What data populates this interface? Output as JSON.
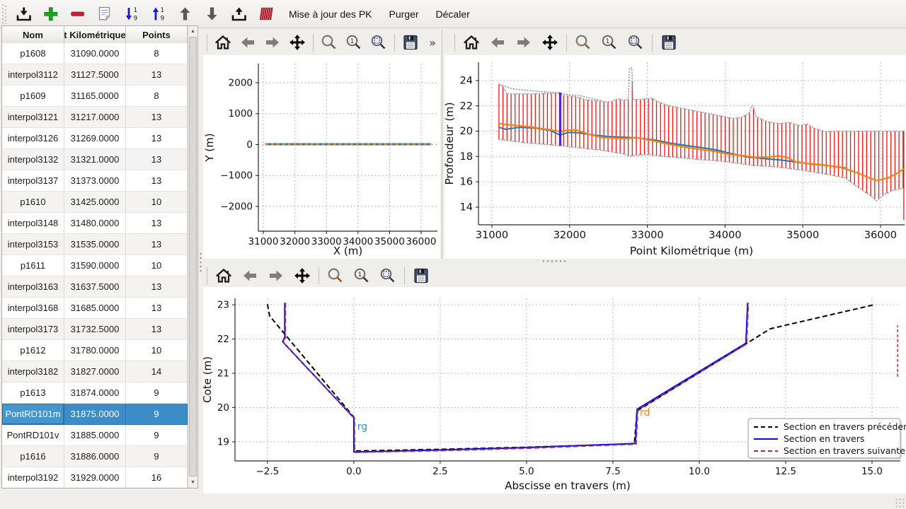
{
  "app": {
    "background": "#efeeeb"
  },
  "toolbar": {
    "icons": [
      "import-icon",
      "add-icon",
      "remove-icon",
      "notes-icon",
      "sort-descending-icon",
      "sort-ascending-icon",
      "move-up-icon",
      "move-down-icon",
      "export-icon",
      "sections-icon"
    ],
    "text_buttons": [
      "Mise à jour des PK",
      "Purger",
      "Décaler"
    ]
  },
  "table": {
    "columns": [
      {
        "label": "Nom",
        "width": 88
      },
      {
        "label": "t Kilométrique",
        "width": 87
      },
      {
        "label": "Points",
        "width": 87
      }
    ],
    "rows": [
      [
        "p1608",
        "31090.0000",
        "8"
      ],
      [
        "interpol3112",
        "31127.5000",
        "13"
      ],
      [
        "p1609",
        "31165.0000",
        "8"
      ],
      [
        "interpol3121",
        "31217.0000",
        "13"
      ],
      [
        "interpol3126",
        "31269.0000",
        "13"
      ],
      [
        "interpol3132",
        "31321.0000",
        "13"
      ],
      [
        "interpol3137",
        "31373.0000",
        "13"
      ],
      [
        "p1610",
        "31425.0000",
        "10"
      ],
      [
        "interpol3148",
        "31480.0000",
        "13"
      ],
      [
        "interpol3153",
        "31535.0000",
        "13"
      ],
      [
        "p1611",
        "31590.0000",
        "10"
      ],
      [
        "interpol3163",
        "31637.5000",
        "13"
      ],
      [
        "interpol3168",
        "31685.0000",
        "13"
      ],
      [
        "interpol3173",
        "31732.5000",
        "13"
      ],
      [
        "p1612",
        "31780.0000",
        "10"
      ],
      [
        "interpol3182",
        "31827.0000",
        "14"
      ],
      [
        "p1613",
        "31874.0000",
        "9"
      ],
      [
        "PontRD101m",
        "31875.0000",
        "9"
      ],
      [
        "PontRD101v",
        "31885.0000",
        "9"
      ],
      [
        "p1616",
        "31886.0000",
        "9"
      ],
      [
        "interpol3192",
        "31929.0000",
        "16"
      ]
    ],
    "selected_index": 17,
    "selected_color": "#3c8cc7"
  },
  "figures": [
    {
      "id": "trace",
      "nav_icons": [
        "home-icon",
        "back-icon",
        "forward-icon",
        "pan-icon",
        "zoom-icon",
        "zoom-region-icon",
        "zoom-fit-icon",
        "save-icon"
      ],
      "overflow": "»"
    },
    {
      "id": "profil",
      "nav_icons": [
        "home-icon",
        "back-icon",
        "forward-icon",
        "pan-icon",
        "zoom-icon",
        "zoom-region-icon",
        "zoom-fit-icon",
        "save-icon"
      ],
      "overflow": null
    },
    {
      "id": "section",
      "nav_icons": [
        "home-icon",
        "back-icon",
        "forward-icon",
        "pan-icon",
        "zoom-icon",
        "zoom-region-icon",
        "zoom-fit-icon",
        "save-icon"
      ],
      "overflow": null
    }
  ],
  "chart_data": [
    {
      "id": "trace",
      "type": "line",
      "title": "",
      "xlabel": "X (m)",
      "ylabel": "Y (m)",
      "xlim": [
        30843,
        36516
      ],
      "ylim": [
        -2800,
        2617
      ],
      "xticks": [
        31000,
        32000,
        33000,
        34000,
        35000,
        36000
      ],
      "xtick_labels": [
        "31000",
        "32000",
        "33000",
        "34000",
        "35000",
        "36000"
      ],
      "yticks": [
        -2000,
        -1000,
        0,
        1000,
        2000
      ],
      "ytick_labels": [
        "−2000",
        "−1000",
        "0",
        "1000",
        "2000"
      ],
      "grid": true,
      "series": [
        {
          "name": "axe-hydraulique",
          "color": "#1f77b4",
          "width": 3,
          "dash": null,
          "points": [
            [
              31060,
              10
            ],
            [
              36320,
              10
            ]
          ]
        },
        {
          "name": "axe-hydraulique-pk",
          "color": "#ff7f0e",
          "width": 2.6,
          "dash": "4 4",
          "points": [
            [
              31060,
              10
            ],
            [
              36320,
              10
            ]
          ]
        }
      ]
    },
    {
      "id": "profil",
      "type": "line",
      "title": "",
      "xlabel": "Point Kilométrique (m)",
      "ylabel": "Profondeur (m)",
      "xlim": [
        30827,
        36310
      ],
      "ylim": [
        12.6,
        25.45
      ],
      "xticks": [
        31000,
        32000,
        33000,
        34000,
        35000,
        36000
      ],
      "xtick_labels": [
        "31000",
        "32000",
        "33000",
        "34000",
        "35000",
        "36000"
      ],
      "yticks": [
        14,
        16,
        18,
        20,
        22,
        24
      ],
      "ytick_labels": [
        "14",
        "16",
        "18",
        "20",
        "22",
        "24"
      ],
      "grid": true,
      "bars": {
        "color": "#f21414",
        "width": 1.3,
        "start": 31090,
        "end": 36290,
        "spacing": 52,
        "extra_bars": [
          [
            36300,
            13.0,
            20.0
          ]
        ],
        "top_env": [
          [
            31090,
            23.7
          ],
          [
            31140,
            23.55
          ],
          [
            31190,
            22.95
          ],
          [
            31500,
            22.95
          ],
          [
            31790,
            23.0
          ],
          [
            31870,
            23.05
          ],
          [
            31930,
            22.8
          ],
          [
            32060,
            22.75
          ],
          [
            32200,
            22.5
          ],
          [
            32350,
            22.38
          ],
          [
            32520,
            22.3
          ],
          [
            32620,
            22.55
          ],
          [
            32700,
            22.45
          ],
          [
            32755,
            22.5
          ],
          [
            32770,
            25.0
          ],
          [
            32800,
            25.0
          ],
          [
            32815,
            22.5
          ],
          [
            32900,
            22.5
          ],
          [
            32990,
            22.55
          ],
          [
            33060,
            22.6
          ],
          [
            33130,
            22.35
          ],
          [
            33280,
            22.0
          ],
          [
            33450,
            21.8
          ],
          [
            33700,
            21.5
          ],
          [
            33950,
            21.2
          ],
          [
            34100,
            21.0
          ],
          [
            34220,
            21.1
          ],
          [
            34320,
            21.5
          ],
          [
            34340,
            22.0
          ],
          [
            34360,
            22.0
          ],
          [
            34400,
            21.15
          ],
          [
            34540,
            20.75
          ],
          [
            34700,
            20.6
          ],
          [
            34820,
            20.7
          ],
          [
            34950,
            20.45
          ],
          [
            35060,
            20.55
          ],
          [
            35160,
            20.2
          ],
          [
            35300,
            19.95
          ],
          [
            35450,
            20.0
          ],
          [
            36290,
            20.0
          ]
        ],
        "bottom_env": [
          [
            31090,
            19.35
          ],
          [
            31400,
            19.1
          ],
          [
            31700,
            18.95
          ],
          [
            31875,
            18.85
          ],
          [
            32100,
            18.7
          ],
          [
            32400,
            18.5
          ],
          [
            32700,
            18.2
          ],
          [
            32770,
            18.0
          ],
          [
            32850,
            18.1
          ],
          [
            33000,
            18.15
          ],
          [
            33300,
            17.95
          ],
          [
            33600,
            17.8
          ],
          [
            34000,
            17.6
          ],
          [
            34340,
            17.3
          ],
          [
            34700,
            17.15
          ],
          [
            35000,
            16.9
          ],
          [
            35300,
            16.6
          ],
          [
            35550,
            16.3
          ],
          [
            35700,
            15.6
          ],
          [
            35850,
            15.0
          ],
          [
            35950,
            14.5
          ],
          [
            36050,
            15.0
          ],
          [
            36150,
            15.3
          ],
          [
            36290,
            15.5
          ]
        ]
      },
      "envelope_style": {
        "color": "#9a9a9a",
        "width": 1.6,
        "dash": "1 3"
      },
      "outer_env": [
        [
          31100,
          23.68
        ],
        [
          31260,
          23.35
        ],
        [
          31500,
          23.2
        ],
        [
          31750,
          23.08
        ],
        [
          31950,
          22.92
        ],
        [
          32150,
          22.78
        ],
        [
          32330,
          22.52
        ],
        [
          32420,
          22.4
        ]
      ],
      "selected_marker": {
        "pk": 31875,
        "z0": 18.85,
        "z1": 23.05,
        "color": "#2a2ae0",
        "color2": "#7a1fa0"
      },
      "series": [
        {
          "name": "fond-bleu",
          "color": "#1f77b4",
          "width": 2,
          "dash": null,
          "points": [
            [
              31090,
              20.3
            ],
            [
              31180,
              20.15
            ],
            [
              31350,
              20.3
            ],
            [
              31550,
              20.25
            ],
            [
              31750,
              20.05
            ],
            [
              31875,
              19.7
            ],
            [
              31990,
              19.9
            ],
            [
              32100,
              19.88
            ],
            [
              32300,
              19.7
            ],
            [
              32500,
              19.58
            ],
            [
              32700,
              19.52
            ],
            [
              32900,
              19.45
            ],
            [
              33100,
              19.3
            ],
            [
              33300,
              19.05
            ],
            [
              33500,
              18.87
            ],
            [
              33700,
              18.7
            ],
            [
              33900,
              18.5
            ],
            [
              34100,
              18.2
            ],
            [
              34300,
              17.95
            ],
            [
              34500,
              17.83
            ],
            [
              34700,
              17.73
            ],
            [
              34900,
              17.57
            ],
            [
              35100,
              17.4
            ],
            [
              35300,
              17.3
            ],
            [
              35550,
              17.1
            ]
          ]
        },
        {
          "name": "fond-orange",
          "color": "#ff7f0e",
          "width": 2.2,
          "dash": null,
          "points": [
            [
              31090,
              20.6
            ],
            [
              31300,
              20.45
            ],
            [
              31500,
              20.33
            ],
            [
              31700,
              20.15
            ],
            [
              31875,
              19.98
            ],
            [
              31990,
              20.08
            ],
            [
              32080,
              20.1
            ],
            [
              32250,
              19.75
            ],
            [
              32420,
              19.5
            ],
            [
              32600,
              19.45
            ],
            [
              32750,
              19.42
            ],
            [
              32850,
              19.5
            ],
            [
              33050,
              19.28
            ],
            [
              33250,
              19.0
            ],
            [
              33450,
              18.78
            ],
            [
              33650,
              18.6
            ],
            [
              33850,
              18.42
            ],
            [
              34050,
              18.18
            ],
            [
              34250,
              18.05
            ],
            [
              34400,
              17.92
            ],
            [
              34550,
              17.95
            ],
            [
              34700,
              18.05
            ],
            [
              34800,
              17.92
            ],
            [
              34900,
              17.6
            ],
            [
              35050,
              17.45
            ],
            [
              35250,
              17.35
            ],
            [
              35500,
              17.12
            ],
            [
              35700,
              16.72
            ],
            [
              35850,
              16.32
            ],
            [
              35950,
              16.1
            ],
            [
              36100,
              16.3
            ],
            [
              36250,
              16.8
            ],
            [
              36300,
              17.05
            ]
          ]
        }
      ]
    },
    {
      "id": "section",
      "type": "line",
      "title": "",
      "xlabel": "Abscisse en travers (m)",
      "ylabel": "Cote (m)",
      "xlim": [
        -3.44,
        15.82
      ],
      "ylim": [
        18.44,
        23.19
      ],
      "xticks": [
        -2.5,
        0.0,
        2.5,
        5.0,
        7.5,
        10.0,
        12.5,
        15.0
      ],
      "xtick_labels": [
        "−2.5",
        "0.0",
        "2.5",
        "5.0",
        "7.5",
        "10.0",
        "12.5",
        "15.0"
      ],
      "yticks": [
        19,
        20,
        21,
        22,
        23
      ],
      "ytick_labels": [
        "19",
        "20",
        "21",
        "22",
        "23"
      ],
      "grid": true,
      "series": [
        {
          "name": "section-precedente",
          "color": "#000000",
          "width": 2,
          "dash": "7 4",
          "points": [
            [
              -2.5,
              23.02
            ],
            [
              -2.44,
              22.68
            ],
            [
              0.0,
              19.72
            ],
            [
              0.02,
              18.73
            ],
            [
              2.5,
              18.78
            ],
            [
              5.0,
              18.84
            ],
            [
              8.12,
              18.94
            ],
            [
              8.2,
              19.9
            ],
            [
              11.45,
              21.92
            ],
            [
              12.05,
              22.3
            ],
            [
              15.05,
              23.0
            ]
          ]
        },
        {
          "name": "section-courante",
          "color": "#0b0bd9",
          "width": 2,
          "dash": null,
          "points": [
            [
              -2.0,
              23.06
            ],
            [
              -2.0,
              22.05
            ],
            [
              -2.06,
              21.92
            ],
            [
              0.0,
              19.7
            ],
            [
              0.0,
              18.7
            ],
            [
              2.5,
              18.76
            ],
            [
              5.0,
              18.83
            ],
            [
              8.15,
              18.95
            ],
            [
              8.2,
              19.95
            ],
            [
              11.35,
              21.88
            ],
            [
              11.4,
              23.06
            ]
          ]
        },
        {
          "name": "section-suivante",
          "color": "#8e2c8e",
          "width": 2,
          "dash": "7 4",
          "points": [
            [
              -1.98,
              23.06
            ],
            [
              -1.98,
              22.03
            ],
            [
              -2.04,
              21.9
            ],
            [
              0.02,
              19.68
            ],
            [
              0.02,
              18.69
            ],
            [
              2.5,
              18.74
            ],
            [
              5.0,
              18.81
            ],
            [
              8.17,
              18.93
            ],
            [
              8.22,
              19.93
            ],
            [
              11.37,
              21.86
            ],
            [
              11.42,
              23.06
            ]
          ]
        },
        {
          "name": "pk-suivant-bord",
          "color": "#e02020",
          "width": 1.5,
          "dash": "4 3",
          "points": [
            [
              15.74,
              20.9
            ],
            [
              15.74,
              22.4
            ]
          ]
        }
      ],
      "annotations": [
        {
          "text": "rg",
          "x": 0.1,
          "y": 19.35,
          "color": "#3a8ac4"
        },
        {
          "text": "rd",
          "x": 8.28,
          "y": 19.76,
          "color": "#ff7f0e"
        }
      ],
      "legend": {
        "position": "lower right",
        "entries": [
          {
            "label": "Section en travers précédente",
            "color": "#000000",
            "dash": "6 4"
          },
          {
            "label": "Section en travers",
            "color": "#0b0bd9",
            "dash": null
          },
          {
            "label": "Section en travers suivante",
            "color": "#8e2c8e",
            "dash": "6 4"
          }
        ]
      }
    }
  ]
}
